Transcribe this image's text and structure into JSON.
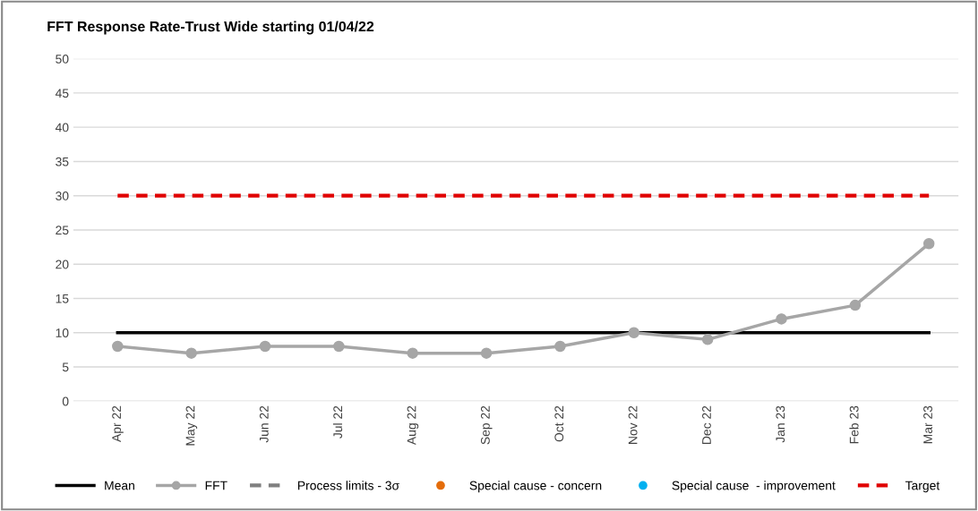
{
  "chart_data": {
    "type": "line",
    "title": "FFT Response Rate-Trust Wide starting 01/04/22",
    "categories": [
      "Apr 22",
      "May 22",
      "Jun 22",
      "Jul 22",
      "Aug 22",
      "Sep 22",
      "Oct 22",
      "Nov 22",
      "Dec 22",
      "Jan 23",
      "Feb 23",
      "Mar 23"
    ],
    "series": [
      {
        "name": "Mean",
        "color": "#000000",
        "marker": "none",
        "line_style": "solid",
        "values": [
          10,
          10,
          10,
          10,
          10,
          10,
          10,
          10,
          10,
          10,
          10,
          10
        ]
      },
      {
        "name": "FFT",
        "color": "#a6a6a6",
        "marker": "circle",
        "line_style": "solid",
        "values": [
          8,
          7,
          8,
          8,
          7,
          7,
          8,
          10,
          9,
          12,
          14,
          23
        ]
      },
      {
        "name": "Process limits - 3σ",
        "color": "#7f7f7f",
        "marker": "none",
        "line_style": "dashed",
        "values": [
          null,
          null,
          null,
          null,
          null,
          null,
          null,
          null,
          null,
          null,
          null,
          null
        ]
      },
      {
        "name": "Special cause - concern",
        "color": "#e46c0a",
        "type": "scatter",
        "marker": "circle",
        "values": [
          null,
          null,
          null,
          null,
          null,
          null,
          null,
          null,
          null,
          null,
          null,
          null
        ]
      },
      {
        "name": "Special cause  - improvement",
        "color": "#00b0f0",
        "type": "scatter",
        "marker": "circle",
        "values": [
          null,
          null,
          null,
          null,
          null,
          null,
          null,
          null,
          null,
          null,
          null,
          null
        ]
      },
      {
        "name": "Target",
        "color": "#e00000",
        "marker": "none",
        "line_style": "dashed",
        "values": [
          30,
          30,
          30,
          30,
          30,
          30,
          30,
          30,
          30,
          30,
          30,
          30
        ]
      }
    ],
    "ylim": [
      0,
      50
    ],
    "yticks": [
      0,
      5,
      10,
      15,
      20,
      25,
      30,
      35,
      40,
      45,
      50
    ],
    "grid": "y",
    "legend": "bottom"
  }
}
